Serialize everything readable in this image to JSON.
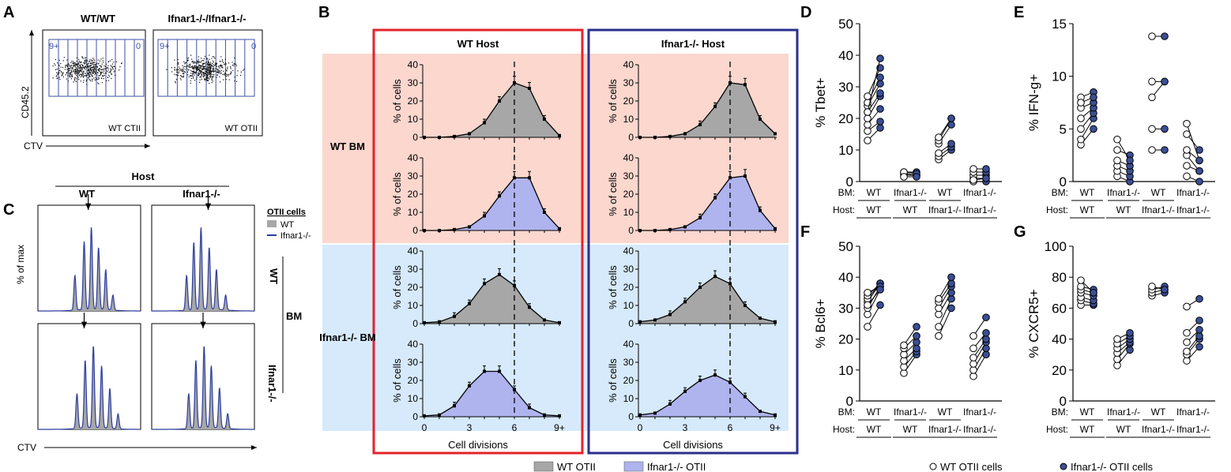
{
  "figure": {
    "panel_letters": {
      "A": "A",
      "B": "B",
      "C": "C",
      "D": "D",
      "E": "E",
      "F": "F",
      "G": "G"
    },
    "colors": {
      "red_box": "#e3232b",
      "blue_box": "#2b2e8c",
      "pink_bg": "#fbd7ce",
      "lightblue_bg": "#d6eafb",
      "gray_fill": "#a7a7a7",
      "blue_fill": "#afb3ee",
      "dot_blue": "#3a4f95",
      "gate_blue": "#3d52a5",
      "hist_blue": "#2d3e9e"
    },
    "panelA": {
      "titles": [
        "WT/WT",
        "Ifnar1-/-/Ifnar1-/-"
      ],
      "gate_left": "9+",
      "gate_right": "0",
      "sample_labels": [
        "WT CTII",
        "WT OTII"
      ],
      "ylabel": "CD45.2",
      "xlabel": "CTV"
    },
    "panelB": {
      "host_titles": [
        "WT Host",
        "Ifnar1-/- Host"
      ],
      "bm_labels": [
        "WT BM",
        "Ifnar1-/- BM"
      ],
      "ylabel": "% of cells",
      "xlabel": "Cell divisions",
      "xticks": [
        "0",
        "3",
        "6",
        "9+"
      ],
      "yticks": [
        "0",
        "10",
        "20",
        "30",
        "40"
      ],
      "legend": [
        "WT OTII",
        "Ifnar1-/- OTII"
      ]
    },
    "panelC": {
      "host_label": "Host",
      "col_labels": [
        "WT",
        "Ifnar1-/-"
      ],
      "legend_title": "OTII cells",
      "legend": [
        "WT",
        "Ifnar1-/-"
      ],
      "bm_label": "BM",
      "row_labels": [
        "WT",
        "Ifnar1-/-"
      ],
      "ylabel": "% of max",
      "xlabel": "CTV"
    },
    "legend_bottom": [
      "WT OTII cells",
      "Ifnar1-/- OTII cells"
    ],
    "xcats": {
      "bm_row": [
        "BM:",
        "WT",
        "Ifnar1-/-",
        "WT",
        "Ifnar1-/-"
      ],
      "host_row": [
        "Host:",
        "WT",
        "WT",
        "Ifnar1-/-",
        "Ifnar1-/-"
      ]
    }
  },
  "chart_data": [
    {
      "panel": "B",
      "type": "area",
      "title": "WT Host / WT BM / WT OTII",
      "xlabel": "Cell divisions",
      "ylabel": "% of cells",
      "x": [
        0,
        1,
        2,
        3,
        4,
        5,
        6,
        7,
        8,
        9
      ],
      "values": [
        0,
        0,
        0.5,
        2,
        8,
        20,
        30,
        27,
        10,
        1
      ],
      "ylim": [
        0,
        40
      ],
      "dashed_x": 6
    },
    {
      "panel": "B",
      "type": "area",
      "title": "Ifnar1-/- Host / WT BM / WT OTII",
      "xlabel": "Cell divisions",
      "ylabel": "% of cells",
      "x": [
        0,
        1,
        2,
        3,
        4,
        5,
        6,
        7,
        8,
        9
      ],
      "values": [
        0,
        0,
        0.5,
        2,
        7,
        17,
        30,
        29,
        10,
        2
      ],
      "ylim": [
        0,
        40
      ],
      "dashed_x": 6
    },
    {
      "panel": "B",
      "type": "area",
      "title": "WT Host / WT BM / Ifnar1-/- OTII",
      "xlabel": "Cell divisions",
      "ylabel": "% of cells",
      "x": [
        0,
        1,
        2,
        3,
        4,
        5,
        6,
        7,
        8,
        9
      ],
      "values": [
        0,
        0,
        0.5,
        2,
        8,
        19,
        29,
        29,
        10,
        1
      ],
      "ylim": [
        0,
        40
      ],
      "dashed_x": 6
    },
    {
      "panel": "B",
      "type": "area",
      "title": "Ifnar1-/- Host / WT BM / Ifnar1-/- OTII",
      "xlabel": "Cell divisions",
      "ylabel": "% of cells",
      "x": [
        0,
        1,
        2,
        3,
        4,
        5,
        6,
        7,
        8,
        9
      ],
      "values": [
        0,
        0,
        0.5,
        2,
        7,
        18,
        29,
        30,
        11,
        1
      ],
      "ylim": [
        0,
        40
      ],
      "dashed_x": 6
    },
    {
      "panel": "B",
      "type": "area",
      "title": "WT Host / Ifnar1-/- BM / WT OTII",
      "xlabel": "Cell divisions",
      "ylabel": "% of cells",
      "x": [
        0,
        1,
        2,
        3,
        4,
        5,
        6,
        7,
        8,
        9
      ],
      "values": [
        0.5,
        1,
        4,
        11,
        22,
        27,
        21,
        9,
        2,
        0.5
      ],
      "ylim": [
        0,
        40
      ],
      "dashed_x": 6
    },
    {
      "panel": "B",
      "type": "area",
      "title": "Ifnar1-/- Host / Ifnar1-/- BM / WT OTII",
      "xlabel": "Cell divisions",
      "ylabel": "% of cells",
      "x": [
        0,
        1,
        2,
        3,
        4,
        5,
        6,
        7,
        8,
        9
      ],
      "values": [
        1,
        2,
        5,
        12,
        20,
        26,
        22,
        10,
        3,
        1
      ],
      "ylim": [
        0,
        40
      ],
      "dashed_x": 6
    },
    {
      "panel": "B",
      "type": "area",
      "title": "WT Host / Ifnar1-/- BM / Ifnar1-/- OTII",
      "xlabel": "Cell divisions",
      "ylabel": "% of cells",
      "x": [
        0,
        1,
        2,
        3,
        4,
        5,
        6,
        7,
        8,
        9
      ],
      "values": [
        0.5,
        1,
        6,
        17,
        25,
        25,
        15,
        5,
        1,
        0.5
      ],
      "ylim": [
        0,
        40
      ],
      "dashed_x": 6
    },
    {
      "panel": "B",
      "type": "area",
      "title": "Ifnar1-/- Host / Ifnar1-/- BM / Ifnar1-/- OTII",
      "xlabel": "Cell divisions",
      "ylabel": "% of cells",
      "x": [
        0,
        1,
        2,
        3,
        4,
        5,
        6,
        7,
        8,
        9
      ],
      "values": [
        1,
        2,
        7,
        14,
        20,
        23,
        19,
        11,
        3,
        1
      ],
      "ylim": [
        0,
        40
      ],
      "dashed_x": 6
    },
    {
      "panel": "D",
      "type": "scatter",
      "ylabel": "% Tbet+",
      "yticks": [
        0,
        10,
        20,
        30,
        40,
        50
      ],
      "ylim": [
        0,
        50
      ],
      "pairs": [
        [
          [
            13,
            17
          ],
          [
            16,
            19
          ],
          [
            18,
            23
          ],
          [
            20,
            27
          ],
          [
            22,
            28
          ],
          [
            24,
            31
          ],
          [
            25,
            33
          ],
          [
            27,
            36
          ],
          [
            22,
            39
          ]
        ],
        [
          [
            2,
            2
          ],
          [
            3,
            3
          ],
          [
            2.5,
            2
          ],
          [
            3,
            2.5
          ],
          [
            1.5,
            1.5
          ]
        ],
        [
          [
            7,
            10
          ],
          [
            8,
            11
          ],
          [
            9,
            12
          ],
          [
            12,
            18
          ],
          [
            13,
            20
          ],
          [
            14,
            20
          ]
        ],
        [
          [
            0,
            0
          ],
          [
            1,
            1
          ],
          [
            2,
            2
          ],
          [
            3,
            3
          ],
          [
            4,
            4
          ],
          [
            0.5,
            1
          ]
        ]
      ]
    },
    {
      "panel": "E",
      "type": "scatter",
      "ylabel": "% IFN-g+",
      "yticks": [
        0,
        5,
        10,
        15
      ],
      "ylim": [
        0,
        15
      ],
      "pairs": [
        [
          [
            3.5,
            5
          ],
          [
            4,
            6
          ],
          [
            5,
            6.5
          ],
          [
            6,
            7
          ],
          [
            7,
            7.5
          ],
          [
            8,
            8.5
          ],
          [
            7.5,
            8
          ]
        ],
        [
          [
            0.5,
            0
          ],
          [
            1,
            0.5
          ],
          [
            1.5,
            1
          ],
          [
            2,
            1.5
          ],
          [
            3,
            2.5
          ],
          [
            4,
            2
          ]
        ],
        [
          [
            3,
            3
          ],
          [
            5,
            5
          ],
          [
            8,
            9.5
          ],
          [
            9.5,
            9.5
          ],
          [
            13.8,
            13.8
          ]
        ],
        [
          [
            0.5,
            0
          ],
          [
            1.5,
            1
          ],
          [
            2.5,
            1
          ],
          [
            3,
            2
          ],
          [
            4.5,
            3
          ],
          [
            5.5,
            2
          ]
        ]
      ]
    },
    {
      "panel": "F",
      "type": "scatter",
      "ylabel": "% Bcl6+",
      "yticks": [
        0,
        10,
        20,
        30,
        40,
        50
      ],
      "ylim": [
        0,
        50
      ],
      "pairs": [
        [
          [
            24,
            31
          ],
          [
            28,
            36
          ],
          [
            30,
            37
          ],
          [
            32,
            38
          ],
          [
            33,
            38
          ],
          [
            34,
            38
          ],
          [
            35,
            37
          ],
          [
            31,
            36
          ]
        ],
        [
          [
            9,
            15
          ],
          [
            11,
            16
          ],
          [
            13,
            17
          ],
          [
            15,
            19
          ],
          [
            17,
            21
          ],
          [
            18,
            24
          ]
        ],
        [
          [
            21,
            30
          ],
          [
            24,
            33
          ],
          [
            28,
            35
          ],
          [
            30,
            37
          ],
          [
            32,
            38
          ],
          [
            33,
            40
          ]
        ],
        [
          [
            8,
            15
          ],
          [
            10,
            17
          ],
          [
            12,
            19
          ],
          [
            14,
            20
          ],
          [
            17,
            22
          ],
          [
            21,
            27
          ]
        ]
      ]
    },
    {
      "panel": "G",
      "type": "scatter",
      "ylabel": "% CXCR5+",
      "yticks": [
        0,
        20,
        40,
        60,
        80,
        100
      ],
      "ylim": [
        0,
        100
      ],
      "pairs": [
        [
          [
            62,
            62
          ],
          [
            65,
            63
          ],
          [
            67,
            65
          ],
          [
            70,
            68
          ],
          [
            72,
            70
          ],
          [
            74,
            72
          ],
          [
            78,
            70
          ]
        ],
        [
          [
            23,
            33
          ],
          [
            27,
            37
          ],
          [
            31,
            38
          ],
          [
            34,
            40
          ],
          [
            37,
            42
          ],
          [
            40,
            44
          ]
        ],
        [
          [
            68,
            70
          ],
          [
            70,
            72
          ],
          [
            72,
            74
          ],
          [
            74,
            72
          ]
        ],
        [
          [
            26,
            35
          ],
          [
            30,
            40
          ],
          [
            32,
            42
          ],
          [
            38,
            46
          ],
          [
            44,
            52
          ],
          [
            61,
            66
          ]
        ]
      ]
    }
  ]
}
